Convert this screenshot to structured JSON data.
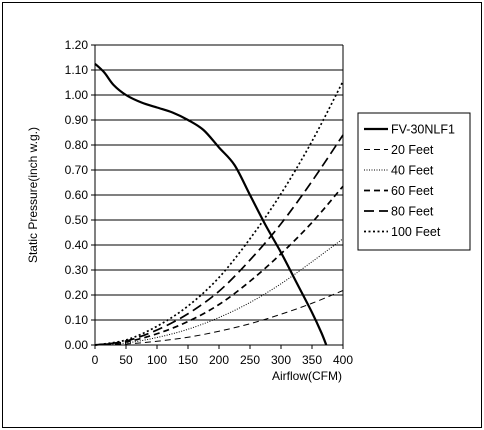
{
  "chart_data": {
    "type": "line",
    "title": "",
    "xlabel": "Airflow(CFM)",
    "ylabel": "Static Pressure(inch w.g.)",
    "xlim": [
      0,
      400
    ],
    "ylim": [
      0,
      1.2
    ],
    "x_ticks": [
      "0",
      "50",
      "100",
      "150",
      "200",
      "250",
      "300",
      "350",
      "400"
    ],
    "y_ticks": [
      "0.00",
      "0.10",
      "0.20",
      "0.30",
      "0.40",
      "0.50",
      "0.60",
      "0.70",
      "0.80",
      "0.90",
      "1.00",
      "1.10",
      "1.20"
    ],
    "grid": "horizontal",
    "legend_position": "right",
    "series": [
      {
        "name": "FV-30NLF1",
        "style": "solid",
        "color": "#000000",
        "points": [
          [
            0,
            1.125
          ],
          [
            15,
            1.09
          ],
          [
            30,
            1.04
          ],
          [
            50,
            1.0
          ],
          [
            75,
            0.97
          ],
          [
            100,
            0.95
          ],
          [
            125,
            0.93
          ],
          [
            150,
            0.9
          ],
          [
            175,
            0.86
          ],
          [
            200,
            0.79
          ],
          [
            225,
            0.72
          ],
          [
            250,
            0.6
          ],
          [
            275,
            0.48
          ],
          [
            300,
            0.37
          ],
          [
            325,
            0.25
          ],
          [
            350,
            0.13
          ],
          [
            365,
            0.05
          ],
          [
            373,
            0.0
          ]
        ]
      },
      {
        "name": "20 Feet",
        "style": "longdash",
        "color": "#000000",
        "points": [
          [
            0,
            0.0
          ],
          [
            50,
            0.004
          ],
          [
            100,
            0.015
          ],
          [
            150,
            0.031
          ],
          [
            200,
            0.055
          ],
          [
            250,
            0.085
          ],
          [
            300,
            0.123
          ],
          [
            350,
            0.167
          ],
          [
            400,
            0.218
          ]
        ]
      },
      {
        "name": "40 Feet",
        "style": "finedot",
        "color": "#000000",
        "points": [
          [
            0,
            0.0
          ],
          [
            50,
            0.008
          ],
          [
            100,
            0.03
          ],
          [
            150,
            0.063
          ],
          [
            200,
            0.11
          ],
          [
            250,
            0.17
          ],
          [
            300,
            0.245
          ],
          [
            350,
            0.333
          ],
          [
            400,
            0.425
          ]
        ]
      },
      {
        "name": "60 Feet",
        "style": "dash",
        "color": "#000000",
        "points": [
          [
            0,
            0.0
          ],
          [
            50,
            0.012
          ],
          [
            100,
            0.045
          ],
          [
            150,
            0.094
          ],
          [
            200,
            0.162
          ],
          [
            250,
            0.255
          ],
          [
            300,
            0.365
          ],
          [
            350,
            0.49
          ],
          [
            400,
            0.635
          ]
        ]
      },
      {
        "name": "80 Feet",
        "style": "longdash2",
        "color": "#000000",
        "points": [
          [
            0,
            0.0
          ],
          [
            50,
            0.016
          ],
          [
            100,
            0.06
          ],
          [
            150,
            0.125
          ],
          [
            200,
            0.215
          ],
          [
            250,
            0.34
          ],
          [
            300,
            0.485
          ],
          [
            350,
            0.655
          ],
          [
            400,
            0.84
          ]
        ]
      },
      {
        "name": "100 Feet",
        "style": "dot",
        "color": "#000000",
        "points": [
          [
            0,
            0.0
          ],
          [
            50,
            0.02
          ],
          [
            100,
            0.075
          ],
          [
            150,
            0.156
          ],
          [
            200,
            0.27
          ],
          [
            250,
            0.425
          ],
          [
            300,
            0.605
          ],
          [
            350,
            0.815
          ],
          [
            400,
            1.055
          ]
        ]
      }
    ]
  }
}
